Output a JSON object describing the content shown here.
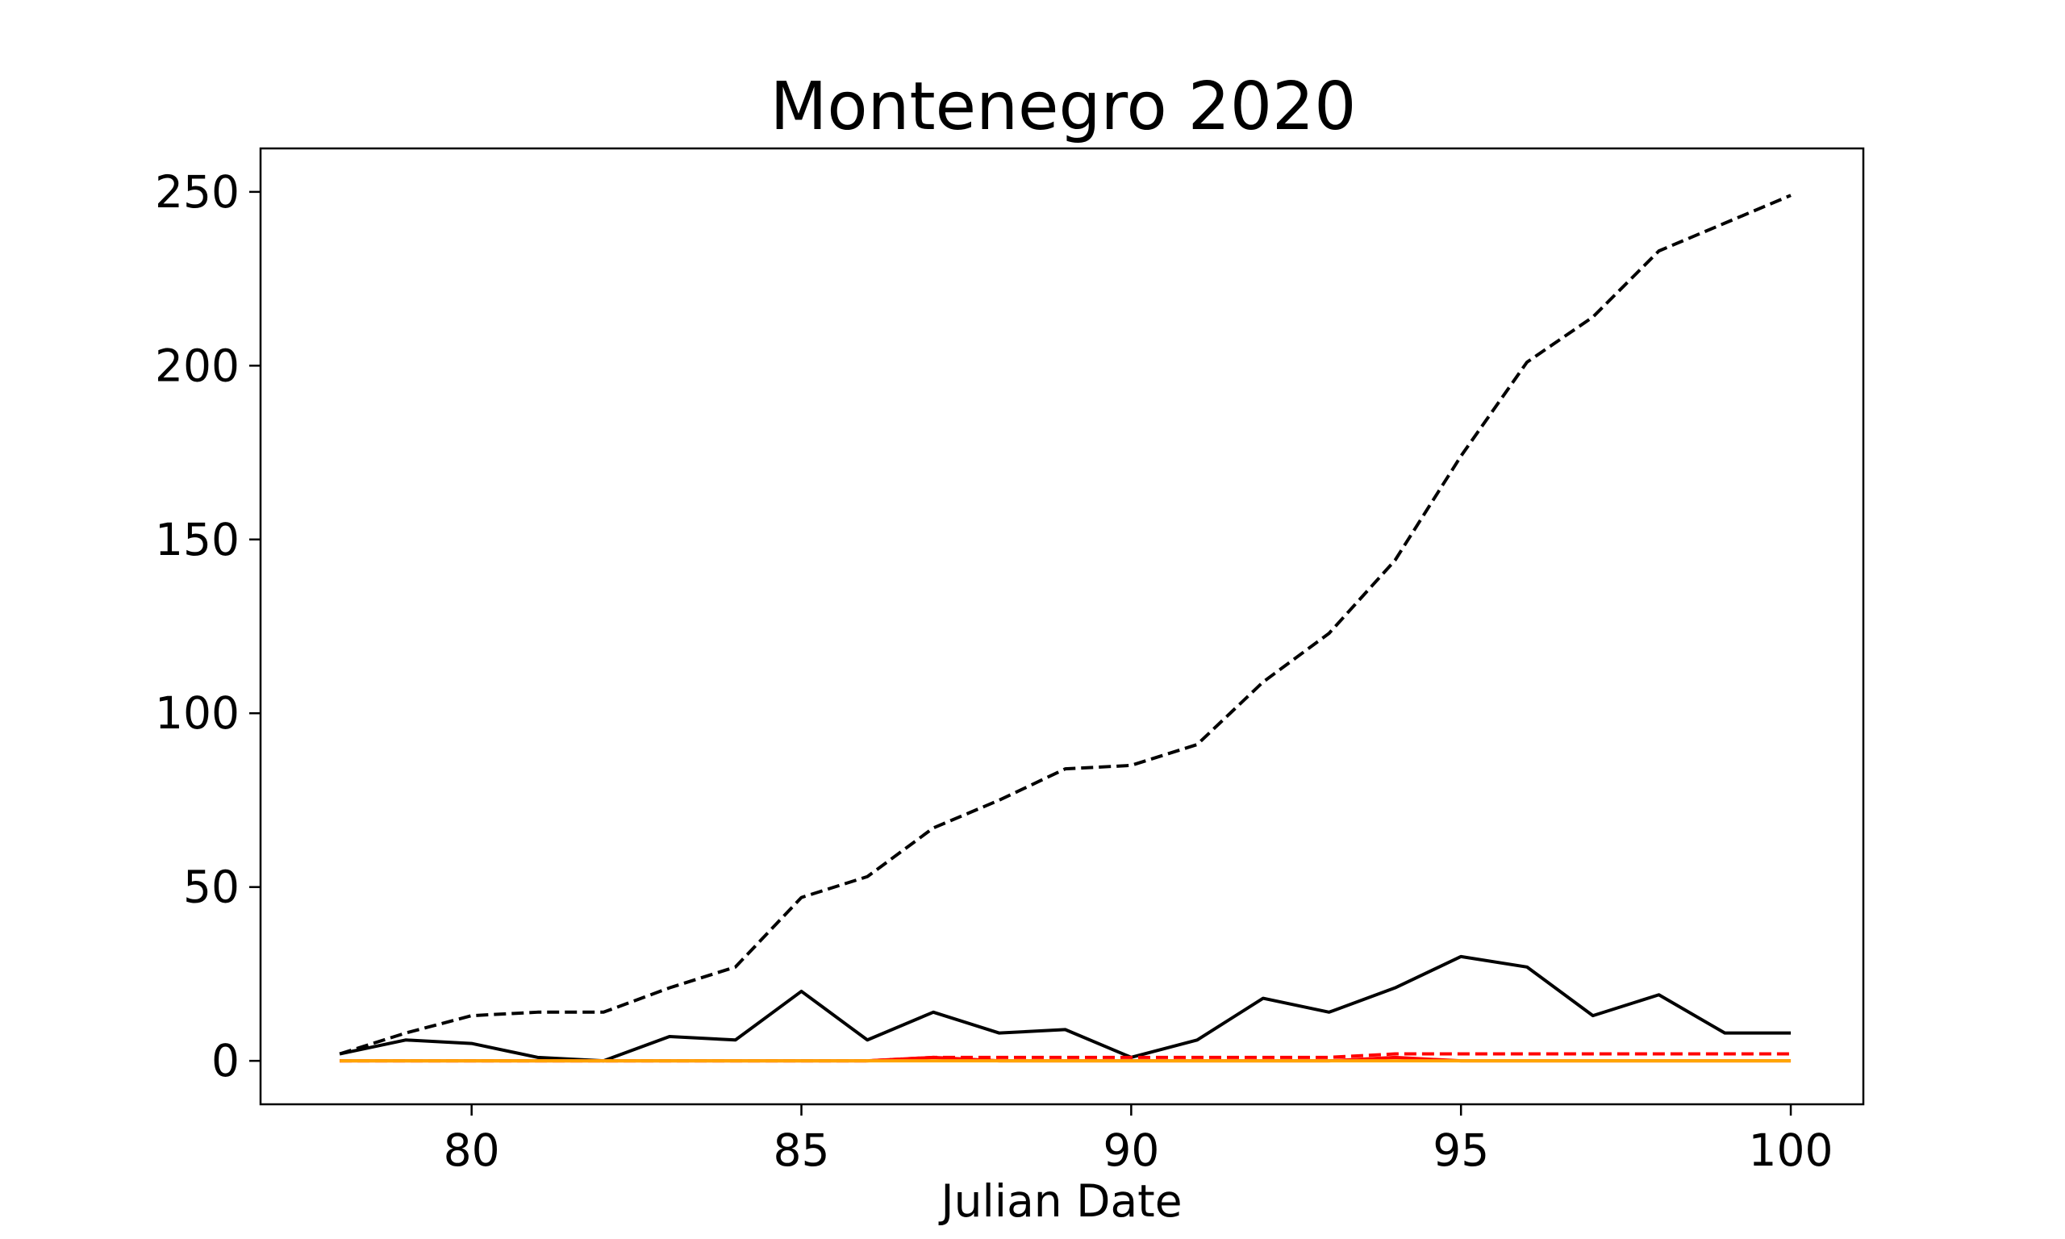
{
  "chart_data": {
    "type": "line",
    "title": "Montenegro 2020",
    "xlabel": "Julian Date",
    "ylabel": "",
    "xlim": [
      76.8,
      101.1
    ],
    "ylim": [
      -12.5,
      262.5
    ],
    "xticks": [
      80,
      85,
      90,
      95,
      100
    ],
    "yticks": [
      0,
      50,
      100,
      150,
      200,
      250
    ],
    "grid": false,
    "legend": "none",
    "x": [
      78,
      79,
      80,
      81,
      82,
      83,
      84,
      85,
      86,
      87,
      88,
      89,
      90,
      91,
      92,
      93,
      94,
      95,
      96,
      97,
      98,
      99,
      100
    ],
    "series": [
      {
        "color": "#000000",
        "style": "dashed",
        "values": [
          2,
          8,
          13,
          14,
          14,
          21,
          27,
          47,
          53,
          67,
          75,
          84,
          85,
          91,
          109,
          123,
          144,
          174,
          201,
          214,
          233,
          241,
          249
        ]
      },
      {
        "color": "#000000",
        "style": "solid",
        "values": [
          2,
          6,
          5,
          1,
          0,
          7,
          6,
          20,
          6,
          14,
          8,
          9,
          1,
          6,
          18,
          14,
          21,
          30,
          27,
          13,
          19,
          8,
          8
        ]
      },
      {
        "color": "#ff0000",
        "style": "dashed",
        "values": [
          0,
          0,
          0,
          0,
          0,
          0,
          0,
          0,
          0,
          1,
          1,
          1,
          1,
          1,
          1,
          1,
          2,
          2,
          2,
          2,
          2,
          2,
          2
        ]
      },
      {
        "color": "#ff0000",
        "style": "solid",
        "values": [
          0,
          0,
          0,
          0,
          0,
          0,
          0,
          0,
          0,
          1,
          0,
          0,
          0,
          0,
          0,
          0,
          1,
          0,
          0,
          0,
          0,
          0,
          0
        ]
      },
      {
        "color": "#ffa500",
        "style": "solid",
        "values": [
          0,
          0,
          0,
          0,
          0,
          0,
          0,
          0,
          0,
          0,
          0,
          0,
          0,
          0,
          0,
          0,
          0,
          0,
          0,
          0,
          0,
          0,
          0
        ]
      }
    ]
  }
}
